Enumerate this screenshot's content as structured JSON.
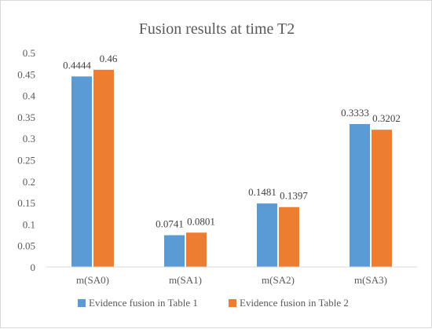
{
  "chart_data": {
    "type": "bar",
    "title": "Fusion results at time T2",
    "categories": [
      "m(SA0)",
      "m(SA1)",
      "m(SA2)",
      "m(SA3)"
    ],
    "series": [
      {
        "name": "Evidence fusion in Table 1",
        "values": [
          0.4444,
          0.0741,
          0.1481,
          0.3333
        ],
        "labels": [
          "0.4444",
          "0.0741",
          "0.1481",
          "0.3333"
        ],
        "color": "#5b9bd5"
      },
      {
        "name": "Evidence fusion in Table 2",
        "values": [
          0.46,
          0.0801,
          0.1397,
          0.3202
        ],
        "labels": [
          "0.46",
          "0.0801",
          "0.1397",
          "0.3202"
        ],
        "color": "#ed7d31"
      }
    ],
    "yticks": [
      "0",
      "0.05",
      "0.1",
      "0.15",
      "0.2",
      "0.25",
      "0.3",
      "0.35",
      "0.4",
      "0.45",
      "0.5"
    ],
    "ylim": [
      0,
      0.5
    ],
    "grid": false,
    "legend": "bottom",
    "xlabel": "",
    "ylabel": ""
  }
}
